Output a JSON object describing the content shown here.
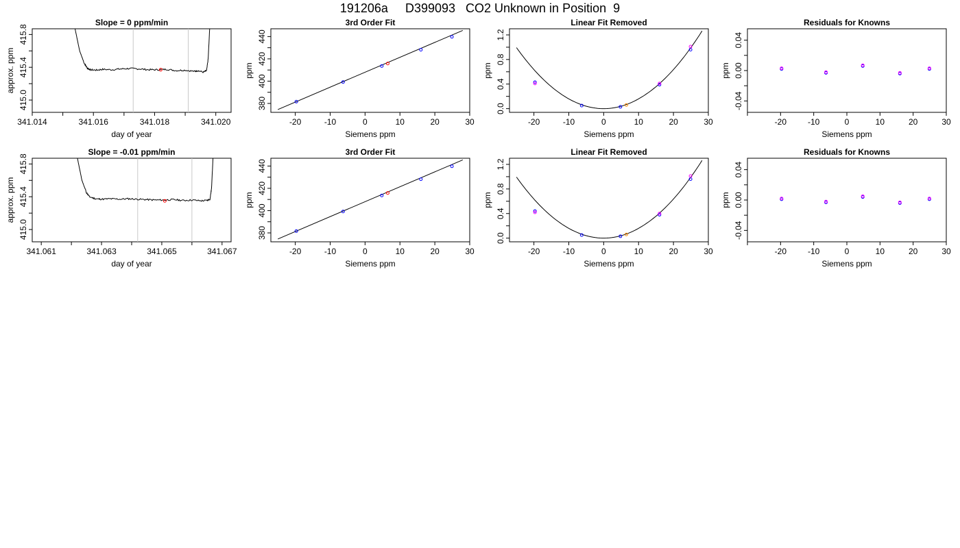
{
  "page": {
    "title": "191206a     D399093   CO2 Unknown in Position  9"
  },
  "chart_data": [
    {
      "type": "line",
      "title": "Slope =  0  ppm/min",
      "xlabel": "day of year",
      "ylabel": "approx. ppm",
      "xlim": [
        341.014,
        341.0205
      ],
      "ylim": [
        414.85,
        415.87
      ],
      "xticks": [
        341.014,
        341.015,
        341.016,
        341.017,
        341.018,
        341.019,
        341.02
      ],
      "xtick_labels": [
        "341.014",
        "",
        "341.016",
        "",
        "341.018",
        "",
        "341.020"
      ],
      "yticks": [
        415.0,
        415.2,
        415.4,
        415.6,
        415.8
      ],
      "ytick_labels": [
        "415.0",
        "",
        "415.4",
        "",
        "415.8"
      ],
      "vlines": [
        341.0173,
        341.0191
      ],
      "series": [
        {
          "color": "#000000",
          "x": [
            341.0154,
            341.01555,
            341.0157,
            341.0158,
            341.0159,
            341.0161,
            341.0163,
            341.0166,
            341.0169,
            341.0172,
            341.0175,
            341.0178,
            341.0181,
            341.0184,
            341.0187,
            341.019,
            341.0193,
            341.0194,
            341.0196,
            341.0197,
            341.01975,
            341.0198
          ],
          "y": [
            415.87,
            415.6,
            415.45,
            415.39,
            415.37,
            415.365,
            415.375,
            415.37,
            415.38,
            415.385,
            415.38,
            415.37,
            415.37,
            415.375,
            415.36,
            415.365,
            415.35,
            415.36,
            415.34,
            415.36,
            415.5,
            415.87
          ]
        }
      ],
      "points": [
        {
          "x": 341.0182,
          "y": 415.37,
          "color": "#ff0000"
        }
      ]
    },
    {
      "type": "scatter",
      "title": "3rd Order Fit",
      "xlabel": "Siemens ppm",
      "ylabel": "ppm",
      "xlim": [
        -27,
        30
      ],
      "ylim": [
        372,
        447
      ],
      "xticks": [
        -20,
        -10,
        0,
        10,
        20,
        30
      ],
      "xtick_labels": [
        "-20",
        "-10",
        "0",
        "10",
        "20",
        "30"
      ],
      "yticks": [
        380,
        390,
        400,
        410,
        420,
        430,
        440
      ],
      "ytick_labels": [
        "380",
        "",
        "400",
        "",
        "420",
        "",
        "440"
      ],
      "line": {
        "x": [
          -25,
          28
        ],
        "y": [
          374.5,
          445.5
        ]
      },
      "points": [
        {
          "x": -19.7,
          "y": 381.6,
          "color": "#0000ff"
        },
        {
          "x": -6.3,
          "y": 399.2,
          "color": "#0000ff"
        },
        {
          "x": 4.8,
          "y": 413.6,
          "color": "#0000ff"
        },
        {
          "x": 16.0,
          "y": 428.2,
          "color": "#0000ff"
        },
        {
          "x": 24.9,
          "y": 439.8,
          "color": "#0000ff"
        },
        {
          "x": 6.5,
          "y": 415.8,
          "color": "#ff0000"
        }
      ]
    },
    {
      "type": "scatter",
      "title": "Linear Fit Removed",
      "xlabel": "Siemens ppm",
      "ylabel": "ppm",
      "xlim": [
        -27,
        30
      ],
      "ylim": [
        -0.06,
        1.3
      ],
      "xticks": [
        -20,
        -10,
        0,
        10,
        20,
        30
      ],
      "xtick_labels": [
        "-20",
        "-10",
        "0",
        "10",
        "20",
        "30"
      ],
      "yticks": [
        0.0,
        0.2,
        0.4,
        0.6,
        0.8,
        1.0,
        1.2
      ],
      "ytick_labels": [
        "0.0",
        "",
        "0.4",
        "",
        "0.8",
        "",
        "1.2"
      ],
      "curve": {
        "vertex_x": 0,
        "vertex_y": 0.0,
        "a": 0.00159,
        "x_start": -25,
        "x_end": 28.2
      },
      "points": [
        {
          "x": -19.7,
          "y": 0.43,
          "color": "#0000ff"
        },
        {
          "x": -19.7,
          "y": 0.41,
          "color": "#ff00ff"
        },
        {
          "x": -6.3,
          "y": 0.05,
          "color": "#0000ff"
        },
        {
          "x": 4.8,
          "y": 0.03,
          "color": "#0000ff"
        },
        {
          "x": 16.0,
          "y": 0.39,
          "color": "#0000ff"
        },
        {
          "x": 16.0,
          "y": 0.41,
          "color": "#ff00ff"
        },
        {
          "x": 24.9,
          "y": 0.96,
          "color": "#0000ff"
        },
        {
          "x": 24.9,
          "y": 1.01,
          "color": "#ff00ff"
        },
        {
          "x": 6.5,
          "y": 0.06,
          "color": "#ff8c00"
        }
      ]
    },
    {
      "type": "scatter",
      "title": "Residuals for Knowns",
      "xlabel": "Siemens ppm",
      "ylabel": "ppm",
      "xlim": [
        -30,
        30
      ],
      "ylim": [
        -0.055,
        0.055
      ],
      "xticks": [
        -30,
        -20,
        -10,
        0,
        10,
        20,
        30
      ],
      "xtick_labels": [
        "",
        "-20",
        "-10",
        "0",
        "10",
        "20",
        "30"
      ],
      "yticks": [
        -0.04,
        -0.02,
        0.0,
        0.02,
        0.04
      ],
      "ytick_labels": [
        "-0.04",
        "",
        "0.00",
        "",
        "0.04"
      ],
      "points": [
        {
          "x": -19.7,
          "y": 0.002,
          "color": "#0000ff"
        },
        {
          "x": -6.3,
          "y": -0.003,
          "color": "#0000ff"
        },
        {
          "x": 4.8,
          "y": 0.006,
          "color": "#0000ff"
        },
        {
          "x": 16.0,
          "y": -0.004,
          "color": "#0000ff"
        },
        {
          "x": 24.9,
          "y": 0.002,
          "color": "#0000ff"
        },
        {
          "x": -19.7,
          "y": 0.003,
          "color": "#ff00ff"
        },
        {
          "x": -6.3,
          "y": -0.002,
          "color": "#ff00ff"
        },
        {
          "x": 4.8,
          "y": 0.007,
          "color": "#ff00ff"
        },
        {
          "x": 16.0,
          "y": -0.003,
          "color": "#ff00ff"
        },
        {
          "x": 24.9,
          "y": 0.003,
          "color": "#ff00ff"
        }
      ]
    },
    {
      "type": "line",
      "title": "Slope =  -0.01  ppm/min",
      "xlabel": "day of year",
      "ylabel": "approx. ppm",
      "xlim": [
        341.0607,
        341.0673
      ],
      "ylim": [
        414.85,
        415.87
      ],
      "xticks": [
        341.061,
        341.062,
        341.063,
        341.064,
        341.065,
        341.066,
        341.067
      ],
      "xtick_labels": [
        "341.061",
        "",
        "341.063",
        "",
        "341.065",
        "",
        "341.067"
      ],
      "yticks": [
        415.0,
        415.2,
        415.4,
        415.6,
        415.8
      ],
      "ytick_labels": [
        "415.0",
        "",
        "415.4",
        "",
        "415.8"
      ],
      "vlines": [
        341.0642,
        341.066
      ],
      "series": [
        {
          "color": "#000000",
          "x": [
            341.0622,
            341.06235,
            341.0625,
            341.0626,
            341.0628,
            341.063,
            341.0633,
            341.0636,
            341.0639,
            341.0642,
            341.0645,
            341.0648,
            341.0651,
            341.0654,
            341.0657,
            341.066,
            341.0663,
            341.0665,
            341.0666,
            341.06665,
            341.0667
          ],
          "y": [
            415.87,
            415.6,
            415.45,
            415.4,
            415.375,
            415.37,
            415.375,
            415.37,
            415.375,
            415.37,
            415.365,
            415.36,
            415.36,
            415.365,
            415.355,
            415.36,
            415.35,
            415.355,
            415.37,
            415.5,
            415.87
          ]
        }
      ],
      "points": [
        {
          "x": 341.0651,
          "y": 415.35,
          "color": "#ff0000"
        }
      ]
    },
    {
      "type": "scatter",
      "title": "3rd Order Fit",
      "xlabel": "Siemens ppm",
      "ylabel": "ppm",
      "xlim": [
        -27,
        30
      ],
      "ylim": [
        372,
        447
      ],
      "xticks": [
        -20,
        -10,
        0,
        10,
        20,
        30
      ],
      "xtick_labels": [
        "-20",
        "-10",
        "0",
        "10",
        "20",
        "30"
      ],
      "yticks": [
        380,
        390,
        400,
        410,
        420,
        430,
        440
      ],
      "ytick_labels": [
        "380",
        "",
        "400",
        "",
        "420",
        "",
        "440"
      ],
      "line": {
        "x": [
          -25,
          28
        ],
        "y": [
          374.5,
          445.5
        ]
      },
      "points": [
        {
          "x": -19.7,
          "y": 381.6,
          "color": "#0000ff"
        },
        {
          "x": -6.3,
          "y": 399.2,
          "color": "#0000ff"
        },
        {
          "x": 4.8,
          "y": 413.6,
          "color": "#0000ff"
        },
        {
          "x": 16.0,
          "y": 428.2,
          "color": "#0000ff"
        },
        {
          "x": 24.9,
          "y": 439.8,
          "color": "#0000ff"
        },
        {
          "x": 6.5,
          "y": 415.8,
          "color": "#ff0000"
        }
      ]
    },
    {
      "type": "scatter",
      "title": "Linear Fit Removed",
      "xlabel": "Siemens ppm",
      "ylabel": "ppm",
      "xlim": [
        -27,
        30
      ],
      "ylim": [
        -0.06,
        1.3
      ],
      "xticks": [
        -20,
        -10,
        0,
        10,
        20,
        30
      ],
      "xtick_labels": [
        "-20",
        "-10",
        "0",
        "10",
        "20",
        "30"
      ],
      "yticks": [
        0.0,
        0.2,
        0.4,
        0.6,
        0.8,
        1.0,
        1.2
      ],
      "ytick_labels": [
        "0.0",
        "",
        "0.4",
        "",
        "0.8",
        "",
        "1.2"
      ],
      "curve": {
        "vertex_x": 0,
        "vertex_y": 0.0,
        "a": 0.00159,
        "x_start": -25,
        "x_end": 28.2
      },
      "points": [
        {
          "x": -19.7,
          "y": 0.44,
          "color": "#0000ff"
        },
        {
          "x": -19.7,
          "y": 0.42,
          "color": "#ff00ff"
        },
        {
          "x": -6.3,
          "y": 0.05,
          "color": "#0000ff"
        },
        {
          "x": 4.8,
          "y": 0.03,
          "color": "#0000ff"
        },
        {
          "x": 16.0,
          "y": 0.38,
          "color": "#0000ff"
        },
        {
          "x": 16.0,
          "y": 0.4,
          "color": "#ff00ff"
        },
        {
          "x": 24.9,
          "y": 0.96,
          "color": "#0000ff"
        },
        {
          "x": 24.9,
          "y": 1.01,
          "color": "#ff00ff"
        },
        {
          "x": 6.5,
          "y": 0.06,
          "color": "#ff8c00"
        }
      ]
    },
    {
      "type": "scatter",
      "title": "Residuals for Knowns",
      "xlabel": "Siemens ppm",
      "ylabel": "ppm",
      "xlim": [
        -30,
        30
      ],
      "ylim": [
        -0.055,
        0.055
      ],
      "xticks": [
        -30,
        -20,
        -10,
        0,
        10,
        20,
        30
      ],
      "xtick_labels": [
        "",
        "-20",
        "-10",
        "0",
        "10",
        "20",
        "30"
      ],
      "yticks": [
        -0.04,
        -0.02,
        0.0,
        0.02,
        0.04
      ],
      "ytick_labels": [
        "-0.04",
        "",
        "0.00",
        "",
        "0.04"
      ],
      "points": [
        {
          "x": -19.7,
          "y": 0.001,
          "color": "#0000ff"
        },
        {
          "x": -6.3,
          "y": -0.003,
          "color": "#0000ff"
        },
        {
          "x": 4.8,
          "y": 0.004,
          "color": "#0000ff"
        },
        {
          "x": 16.0,
          "y": -0.004,
          "color": "#0000ff"
        },
        {
          "x": 24.9,
          "y": 0.001,
          "color": "#0000ff"
        },
        {
          "x": -19.7,
          "y": 0.002,
          "color": "#ff00ff"
        },
        {
          "x": -6.3,
          "y": -0.002,
          "color": "#ff00ff"
        },
        {
          "x": 4.8,
          "y": 0.005,
          "color": "#ff00ff"
        },
        {
          "x": 16.0,
          "y": -0.003,
          "color": "#ff00ff"
        },
        {
          "x": 24.9,
          "y": 0.002,
          "color": "#ff00ff"
        }
      ]
    }
  ]
}
